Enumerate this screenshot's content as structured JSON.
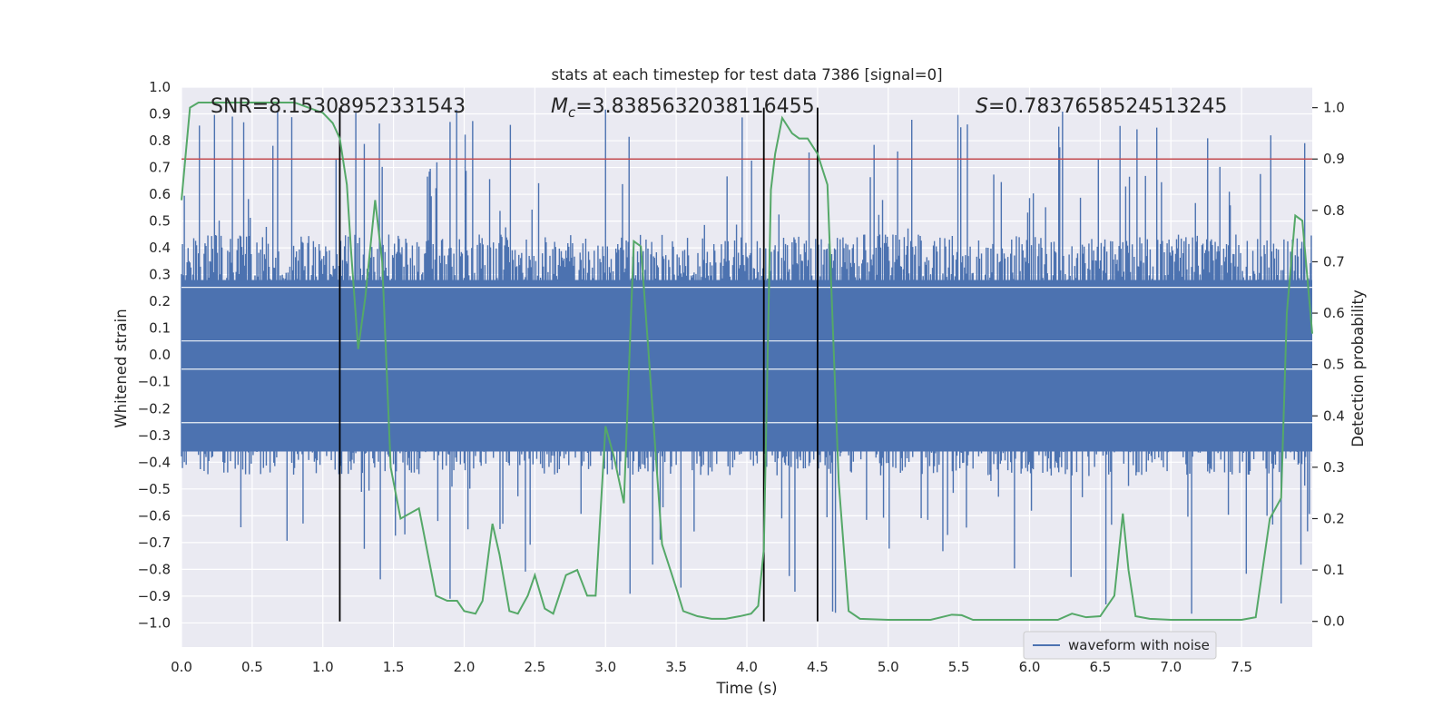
{
  "chart_data": {
    "type": "line",
    "title": "stats at each timestep for test data 7386 [signal=0]",
    "xlabel": "Time (s)",
    "ylabel": "Whitened strain",
    "y2label": "Detection probability",
    "xlim": [
      0.0,
      8.0
    ],
    "ylim": [
      -1.09,
      1.0
    ],
    "y2lim": [
      -0.05,
      1.04
    ],
    "xticks": [
      "0.0",
      "0.5",
      "1.0",
      "1.5",
      "2.0",
      "2.5",
      "3.0",
      "3.5",
      "4.0",
      "4.5",
      "5.0",
      "5.5",
      "6.0",
      "6.5",
      "7.0",
      "7.5"
    ],
    "xtick_values": [
      0.0,
      0.5,
      1.0,
      1.5,
      2.0,
      2.5,
      3.0,
      3.5,
      4.0,
      4.5,
      5.0,
      5.5,
      6.0,
      6.5,
      7.0,
      7.5
    ],
    "yticks": [
      "1.0",
      "0.9",
      "0.8",
      "0.7",
      "0.6",
      "0.5",
      "0.4",
      "0.3",
      "0.2",
      "0.1",
      "0.0",
      "−0.1",
      "−0.2",
      "−0.3",
      "−0.4",
      "−0.5",
      "−0.6",
      "−0.7",
      "−0.8",
      "−0.9",
      "−1.0"
    ],
    "ytick_values": [
      1.0,
      0.9,
      0.8,
      0.7,
      0.6,
      0.5,
      0.4,
      0.3,
      0.2,
      0.1,
      0.0,
      -0.1,
      -0.2,
      -0.3,
      -0.4,
      -0.5,
      -0.6,
      -0.7,
      -0.8,
      -0.9,
      -1.0
    ],
    "y2ticks": [
      "1.0",
      "0.9",
      "0.8",
      "0.7",
      "0.6",
      "0.5",
      "0.4",
      "0.3",
      "0.2",
      "0.1",
      "0.0"
    ],
    "y2tick_values": [
      1.0,
      0.9,
      0.8,
      0.7,
      0.6,
      0.5,
      0.4,
      0.3,
      0.2,
      0.1,
      0.0
    ],
    "annotations": {
      "snr": "SNR=8.15308952331543",
      "mc_symbol": "M",
      "mc_sub": "c",
      "mc_value": "=3.8385632038116455",
      "s_symbol": "S",
      "s_value": "=0.7837658524513245"
    },
    "threshold": {
      "value": 0.9,
      "axis": "y2",
      "color": "#c44e52"
    },
    "vertical_lines": [
      1.12,
      4.12,
      4.5
    ],
    "legend": {
      "label": "waveform with noise",
      "placement": "lower-right"
    },
    "series": [
      {
        "name": "waveform with noise",
        "color": "#4c72b0",
        "axis": "y",
        "kind": "dense noise band",
        "band_typical": [
          -0.45,
          0.45
        ],
        "band_extremes": [
          -0.98,
          0.92
        ],
        "samples": 1200,
        "seed": 7386
      },
      {
        "name": "detection probability",
        "color": "#55a868",
        "axis": "y2",
        "x": [
          0.0,
          0.06,
          0.12,
          0.2,
          0.4,
          0.6,
          0.8,
          0.9,
          1.0,
          1.07,
          1.12,
          1.17,
          1.2,
          1.25,
          1.3,
          1.37,
          1.42,
          1.48,
          1.55,
          1.68,
          1.8,
          1.88,
          1.95,
          2.0,
          2.08,
          2.13,
          2.2,
          2.25,
          2.32,
          2.38,
          2.45,
          2.5,
          2.57,
          2.63,
          2.72,
          2.8,
          2.87,
          2.93,
          3.0,
          3.06,
          3.13,
          3.2,
          3.25,
          3.3,
          3.4,
          3.5,
          3.55,
          3.65,
          3.75,
          3.85,
          3.95,
          4.03,
          4.08,
          4.12,
          4.17,
          4.2,
          4.25,
          4.32,
          4.37,
          4.43,
          4.5,
          4.57,
          4.65,
          4.72,
          4.8,
          5.0,
          5.3,
          5.45,
          5.52,
          5.6,
          5.8,
          6.0,
          6.2,
          6.3,
          6.4,
          6.5,
          6.6,
          6.66,
          6.7,
          6.75,
          6.85,
          7.0,
          7.2,
          7.4,
          7.5,
          7.6,
          7.7,
          7.78,
          7.82,
          7.88,
          7.93,
          8.0
        ],
        "y": [
          0.82,
          1.0,
          1.01,
          1.01,
          1.01,
          1.01,
          1.01,
          1.0,
          0.99,
          0.97,
          0.94,
          0.85,
          0.72,
          0.53,
          0.63,
          0.82,
          0.7,
          0.3,
          0.2,
          0.22,
          0.05,
          0.04,
          0.04,
          0.02,
          0.015,
          0.04,
          0.19,
          0.13,
          0.02,
          0.015,
          0.05,
          0.09,
          0.025,
          0.015,
          0.09,
          0.1,
          0.05,
          0.05,
          0.38,
          0.32,
          0.23,
          0.74,
          0.73,
          0.54,
          0.15,
          0.065,
          0.02,
          0.01,
          0.005,
          0.005,
          0.01,
          0.015,
          0.03,
          0.14,
          0.84,
          0.91,
          0.98,
          0.95,
          0.94,
          0.94,
          0.91,
          0.85,
          0.27,
          0.02,
          0.005,
          0.003,
          0.003,
          0.013,
          0.012,
          0.003,
          0.003,
          0.003,
          0.003,
          0.015,
          0.008,
          0.01,
          0.05,
          0.21,
          0.1,
          0.01,
          0.005,
          0.003,
          0.003,
          0.003,
          0.003,
          0.008,
          0.2,
          0.24,
          0.6,
          0.79,
          0.78,
          0.56
        ]
      }
    ]
  }
}
